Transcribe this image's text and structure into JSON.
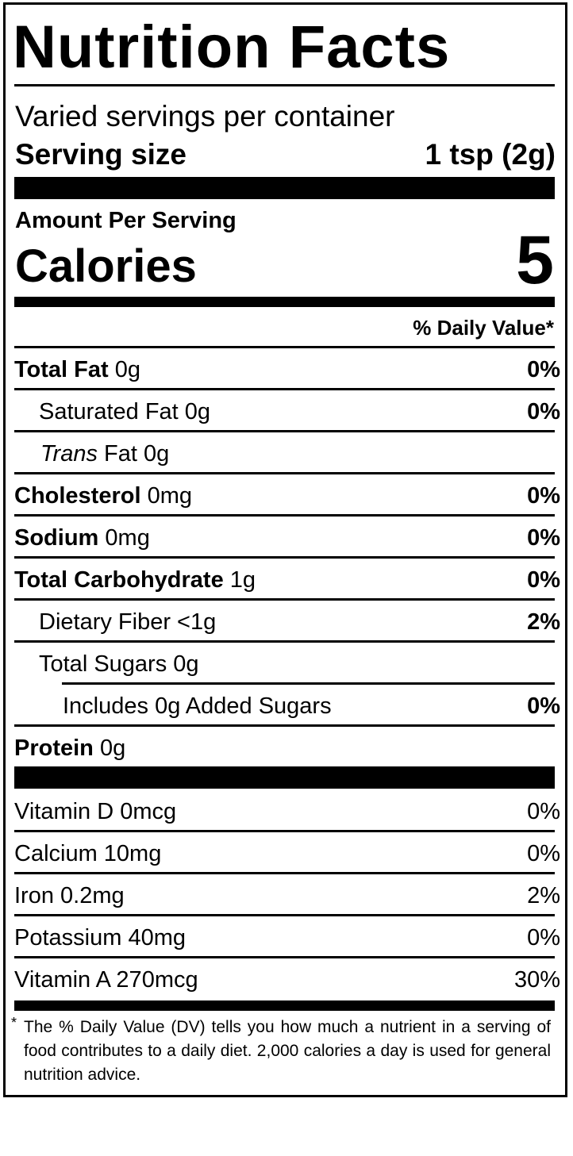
{
  "title": "Nutrition Facts",
  "servings_per_container": "Varied servings per container",
  "serving_size_label": "Serving size",
  "serving_size_value": "1 tsp (2g)",
  "amount_per_serving": "Amount Per Serving",
  "calories_label": "Calories",
  "calories_value": "5",
  "daily_value_header": "% Daily Value*",
  "nutrients": {
    "total_fat": {
      "name": "Total Fat",
      "amount": "0g",
      "dv": "0%"
    },
    "saturated_fat": {
      "name": "Saturated Fat 0g",
      "dv": "0%"
    },
    "trans_fat": {
      "name_italic": "Trans",
      "name_rest": "Fat 0g"
    },
    "cholesterol": {
      "name": "Cholesterol",
      "amount": "0mg",
      "dv": "0%"
    },
    "sodium": {
      "name": "Sodium",
      "amount": "0mg",
      "dv": "0%"
    },
    "total_carbohydrate": {
      "name": "Total Carbohydrate",
      "amount": "1g",
      "dv": "0%"
    },
    "dietary_fiber": {
      "name": "Dietary Fiber <1g",
      "dv": "2%"
    },
    "total_sugars": {
      "name": "Total Sugars 0g"
    },
    "added_sugars": {
      "name": "Includes 0g Added Sugars",
      "dv": "0%"
    },
    "protein": {
      "name": "Protein",
      "amount": "0g"
    }
  },
  "vitamins": [
    {
      "name": "Vitamin D 0mcg",
      "dv": "0%"
    },
    {
      "name": "Calcium 10mg",
      "dv": "0%"
    },
    {
      "name": "Iron 0.2mg",
      "dv": "2%"
    },
    {
      "name": "Potassium 40mg",
      "dv": "0%"
    },
    {
      "name": "Vitamin A 270mcg",
      "dv": "30%"
    }
  ],
  "footnote_star": "*",
  "footnote": "The % Daily Value (DV) tells you how much a nutrient in a serving of food contributes to a daily diet. 2,000 calories a day is used for general nutrition advice."
}
